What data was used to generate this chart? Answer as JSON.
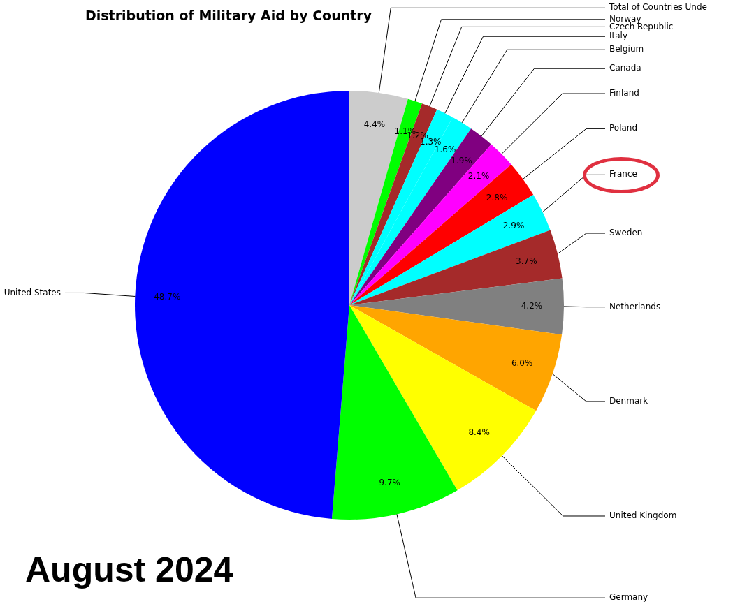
{
  "chart_data": {
    "type": "pie",
    "title": "Distribution of Military Aid by Country",
    "categories": [
      "Total of Countries Unde",
      "Norway",
      "Czech Republic",
      "Italy",
      "Belgium",
      "Canada",
      "Finland",
      "Poland",
      "France",
      "Sweden",
      "Netherlands",
      "Denmark",
      "United Kingdom",
      "Germany",
      "United States"
    ],
    "values": [
      4.4,
      1.1,
      1.2,
      1.3,
      1.6,
      1.9,
      2.1,
      2.8,
      2.9,
      3.7,
      4.2,
      6.0,
      8.4,
      9.7,
      48.7
    ],
    "colors": [
      "#cccccc",
      "#00ff00",
      "#a52a2a",
      "#00ffff",
      "#00ffff",
      "#800080",
      "#ff00ff",
      "#ff0000",
      "#00ffff",
      "#a52a2a",
      "#808080",
      "#ffa500",
      "#ffff00",
      "#00ff00",
      "#0000ff"
    ],
    "value_labels": [
      "4.4%",
      "1.1%",
      "1.2%",
      "1.3%",
      "1.6%",
      "1.9%",
      "2.1%",
      "2.8%",
      "2.9%",
      "3.7%",
      "4.2%",
      "6.0%",
      "8.4%",
      "9.7%",
      "48.7%"
    ],
    "annotations": [
      "August 2024"
    ]
  }
}
